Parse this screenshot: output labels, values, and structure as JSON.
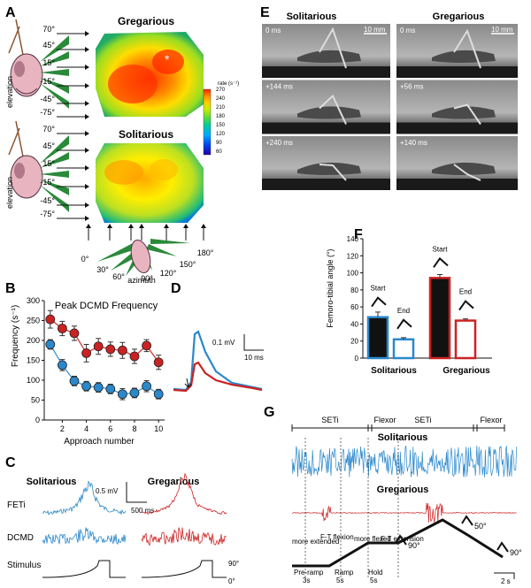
{
  "panels": {
    "A": "A",
    "B": "B",
    "C": "C",
    "D": "D",
    "E": "E",
    "F": "F",
    "G": "G"
  },
  "panelA": {
    "title_greg": "Gregarious",
    "title_sol": "Solitarious",
    "elevation_label": "elevation",
    "azimuth_label": "azimuth",
    "elev_ticks": [
      "70°",
      "45°",
      "15°",
      "-15°",
      "-45°",
      "-75°"
    ],
    "az_ticks": [
      "0°",
      "30°",
      "60°",
      "90°",
      "120°",
      "150°",
      "180°"
    ],
    "star": "*",
    "colorbar_title": "rate (s⁻¹)",
    "colorbar_ticks": [
      "60",
      "90",
      "120",
      "150",
      "180",
      "210",
      "240",
      "270"
    ],
    "colorbar_colors": [
      "#2200aa",
      "#0044ee",
      "#00aaff",
      "#00cc99",
      "#66dd33",
      "#ccee00",
      "#ffcc00",
      "#ff8800",
      "#ff2200"
    ]
  },
  "panelB": {
    "chart_data": {
      "type": "scatter",
      "title": "Peak DCMD Frequency",
      "xlabel": "Approach number",
      "ylabel": "Frequency (s⁻¹)",
      "x": [
        1,
        2,
        3,
        4,
        5,
        6,
        7,
        8,
        9,
        10
      ],
      "xticks": [
        "2",
        "4",
        "6",
        "8",
        "10"
      ],
      "yticks": [
        "0",
        "50",
        "100",
        "150",
        "200",
        "250",
        "300"
      ],
      "ylim": [
        0,
        300
      ],
      "series": [
        {
          "name": "Gregarious",
          "color": "#cc2222",
          "values": [
            253,
            230,
            218,
            168,
            185,
            178,
            175,
            160,
            187,
            145
          ],
          "err": [
            22,
            18,
            18,
            22,
            20,
            18,
            20,
            18,
            15,
            18
          ]
        },
        {
          "name": "Solitarious",
          "color": "#2a88cc",
          "values": [
            190,
            138,
            98,
            85,
            82,
            78,
            65,
            68,
            85,
            65
          ],
          "err": [
            12,
            14,
            12,
            12,
            12,
            12,
            14,
            12,
            14,
            12
          ]
        }
      ]
    }
  },
  "panelC": {
    "title_sol": "Solitarious",
    "title_greg": "Gregarious",
    "row1": "FETi",
    "row2": "DCMD",
    "row3": "Stimulus",
    "scale_v": "0.5 mV",
    "scale_t": "500 ms",
    "angle_hi": "90°",
    "angle_lo": "0°"
  },
  "panelD": {
    "scale_v": "0.1 mV",
    "scale_t": "10 ms"
  },
  "panelE": {
    "title_sol": "Solitarious",
    "title_greg": "Gregarious",
    "scale": "10 mm",
    "sol_times": [
      "0 ms",
      "+144 ms",
      "+240 ms"
    ],
    "greg_times": [
      "0 ms",
      "+56 ms",
      "+140 ms"
    ]
  },
  "panelF": {
    "chart_data": {
      "type": "bar",
      "ylabel": "Femoro-tibial angle (°)",
      "yticks": [
        "0",
        "20",
        "40",
        "60",
        "80",
        "100",
        "120",
        "140"
      ],
      "ylim": [
        0,
        140
      ],
      "groups": [
        "Solitarious",
        "Gregarious"
      ],
      "bar_labels": [
        "Start",
        "End",
        "Start",
        "End"
      ],
      "values": [
        48,
        22,
        94,
        44
      ],
      "err": [
        6,
        2,
        4,
        2
      ],
      "edge_colors": [
        "#2a88cc",
        "#2a88cc",
        "#cc2222",
        "#cc2222"
      ],
      "fills": [
        "#111111",
        "#ffffff",
        "#111111",
        "#ffffff"
      ]
    }
  },
  "panelG": {
    "segments": [
      "SETi",
      "Flexor",
      "SETi",
      "Flexor"
    ],
    "title_sol": "Solitarious",
    "title_greg": "Gregarious",
    "phase_labels": [
      "more extended",
      "F-T flexion",
      "more flexed",
      "F-T extension"
    ],
    "step_labels": [
      "Pre-ramp",
      "3s",
      "Ramp",
      "5s",
      "Hold",
      "5s"
    ],
    "angles": [
      "90°",
      "50°",
      "90°"
    ],
    "scale_t": "2 s"
  }
}
